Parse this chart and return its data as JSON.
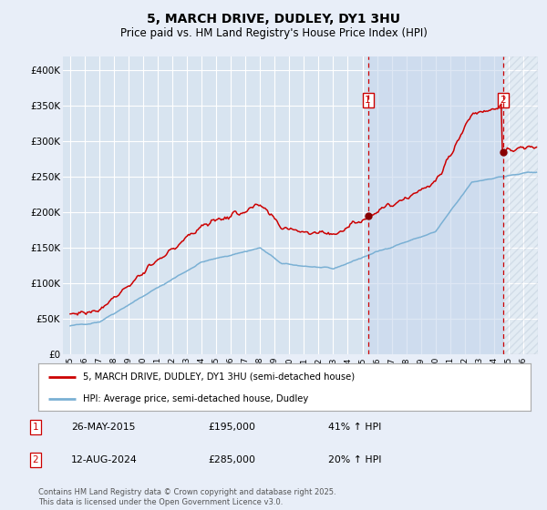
{
  "title": "5, MARCH DRIVE, DUDLEY, DY1 3HU",
  "subtitle": "Price paid vs. HM Land Registry's House Price Index (HPI)",
  "background_color": "#e8eef8",
  "plot_bg_color": "#d8e4f0",
  "plot_bg_color2": "#c8d8ee",
  "grid_color": "#ffffff",
  "legend_label_red": "5, MARCH DRIVE, DUDLEY, DY1 3HU (semi-detached house)",
  "legend_label_blue": "HPI: Average price, semi-detached house, Dudley",
  "transaction1_date": "26-MAY-2015",
  "transaction1_price": 195000,
  "transaction1_pct": "41% ↑ HPI",
  "transaction2_date": "12-AUG-2024",
  "transaction2_price": 285000,
  "transaction2_pct": "20% ↑ HPI",
  "vline1_x": 2015.38,
  "vline2_x": 2024.62,
  "footer": "Contains HM Land Registry data © Crown copyright and database right 2025.\nThis data is licensed under the Open Government Licence v3.0.",
  "ylim": [
    0,
    420000
  ],
  "xlim": [
    1994.5,
    2027.0
  ],
  "yticks": [
    0,
    50000,
    100000,
    150000,
    200000,
    250000,
    300000,
    350000,
    400000
  ],
  "ytick_labels": [
    "£0",
    "£50K",
    "£100K",
    "£150K",
    "£200K",
    "£250K",
    "£300K",
    "£350K",
    "£400K"
  ],
  "red_color": "#cc0000",
  "blue_color": "#7ab0d4"
}
